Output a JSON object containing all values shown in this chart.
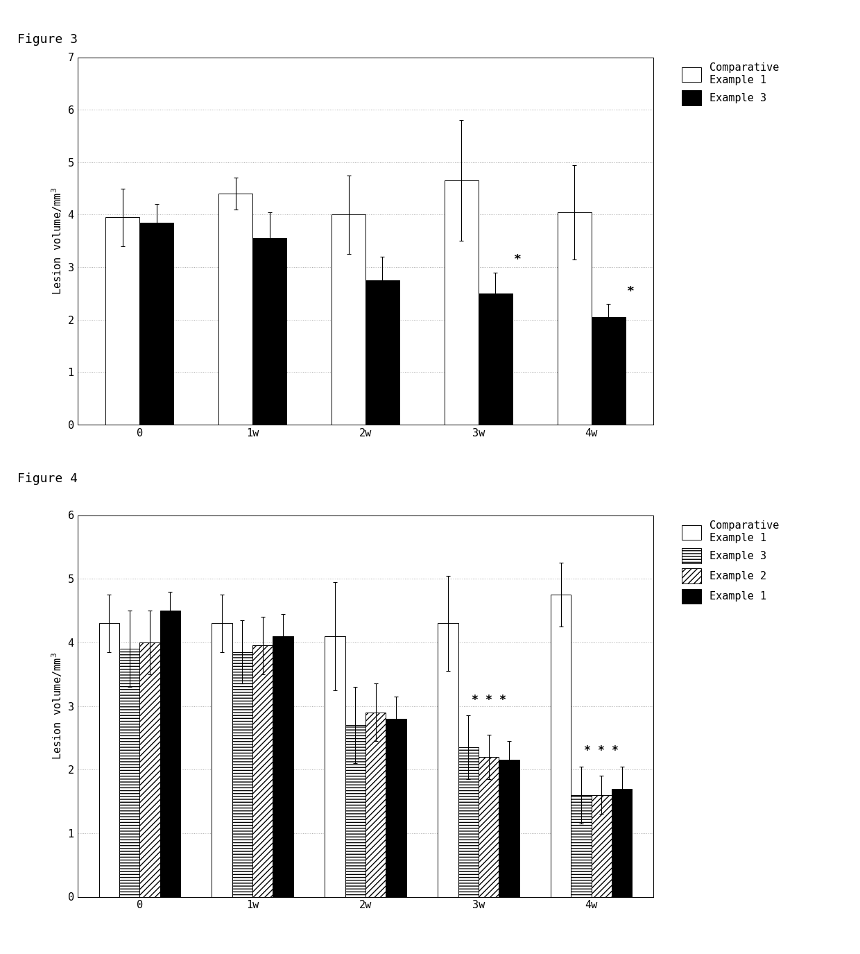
{
  "fig3": {
    "title": "Figure 3",
    "categories": [
      "0",
      "1w",
      "2w",
      "3w",
      "4w"
    ],
    "series": [
      {
        "label": "Comparative\nExample 1",
        "color": "white",
        "edgecolor": "black",
        "hatch": "",
        "values": [
          3.95,
          4.4,
          4.0,
          4.65,
          4.05
        ],
        "errors": [
          0.55,
          0.3,
          0.75,
          1.15,
          0.9
        ]
      },
      {
        "label": "Example 3",
        "color": "black",
        "edgecolor": "black",
        "hatch": "",
        "values": [
          3.85,
          3.55,
          2.75,
          2.5,
          2.05
        ],
        "errors": [
          0.35,
          0.5,
          0.45,
          0.4,
          0.25
        ]
      }
    ],
    "ylabel": "Lesion volume/mm",
    "ylabel_super": "3",
    "ylim": [
      0,
      7
    ],
    "yticks": [
      0,
      1,
      2,
      3,
      4,
      5,
      6,
      7
    ],
    "significance": [
      false,
      false,
      false,
      true,
      true
    ],
    "sig_series_idx": 1,
    "bar_width": 0.3
  },
  "fig4": {
    "title": "Figure 4",
    "categories": [
      "0",
      "1w",
      "2w",
      "3w",
      "4w"
    ],
    "series": [
      {
        "label": "Comparative\nExample 1",
        "color": "white",
        "edgecolor": "black",
        "hatch": "",
        "values": [
          4.3,
          4.3,
          4.1,
          4.3,
          4.75
        ],
        "errors": [
          0.45,
          0.45,
          0.85,
          0.75,
          0.5
        ]
      },
      {
        "label": "Example 3",
        "color": "white",
        "edgecolor": "black",
        "hatch": "----",
        "values": [
          3.9,
          3.85,
          2.7,
          2.35,
          1.6
        ],
        "errors": [
          0.6,
          0.5,
          0.6,
          0.5,
          0.45
        ]
      },
      {
        "label": "Example 2",
        "color": "white",
        "edgecolor": "black",
        "hatch": "////",
        "values": [
          4.0,
          3.95,
          2.9,
          2.2,
          1.6
        ],
        "errors": [
          0.5,
          0.45,
          0.45,
          0.35,
          0.3
        ]
      },
      {
        "label": "Example 1",
        "color": "black",
        "edgecolor": "black",
        "hatch": "",
        "values": [
          4.5,
          4.1,
          2.8,
          2.15,
          1.7
        ],
        "errors": [
          0.3,
          0.35,
          0.35,
          0.3,
          0.35
        ]
      }
    ],
    "ylabel": "Lesion volume/mm",
    "ylabel_super": "3",
    "ylim": [
      0,
      6
    ],
    "yticks": [
      0,
      1,
      2,
      3,
      4,
      5,
      6
    ],
    "significance": [
      false,
      false,
      false,
      true,
      true
    ],
    "sig_series_indices": [
      1,
      2,
      3
    ],
    "bar_width": 0.18
  },
  "font_family": "monospace",
  "font_size_ticks": 11,
  "font_size_label": 11,
  "font_size_legend": 11,
  "font_size_title": 13,
  "font_size_star": 13
}
